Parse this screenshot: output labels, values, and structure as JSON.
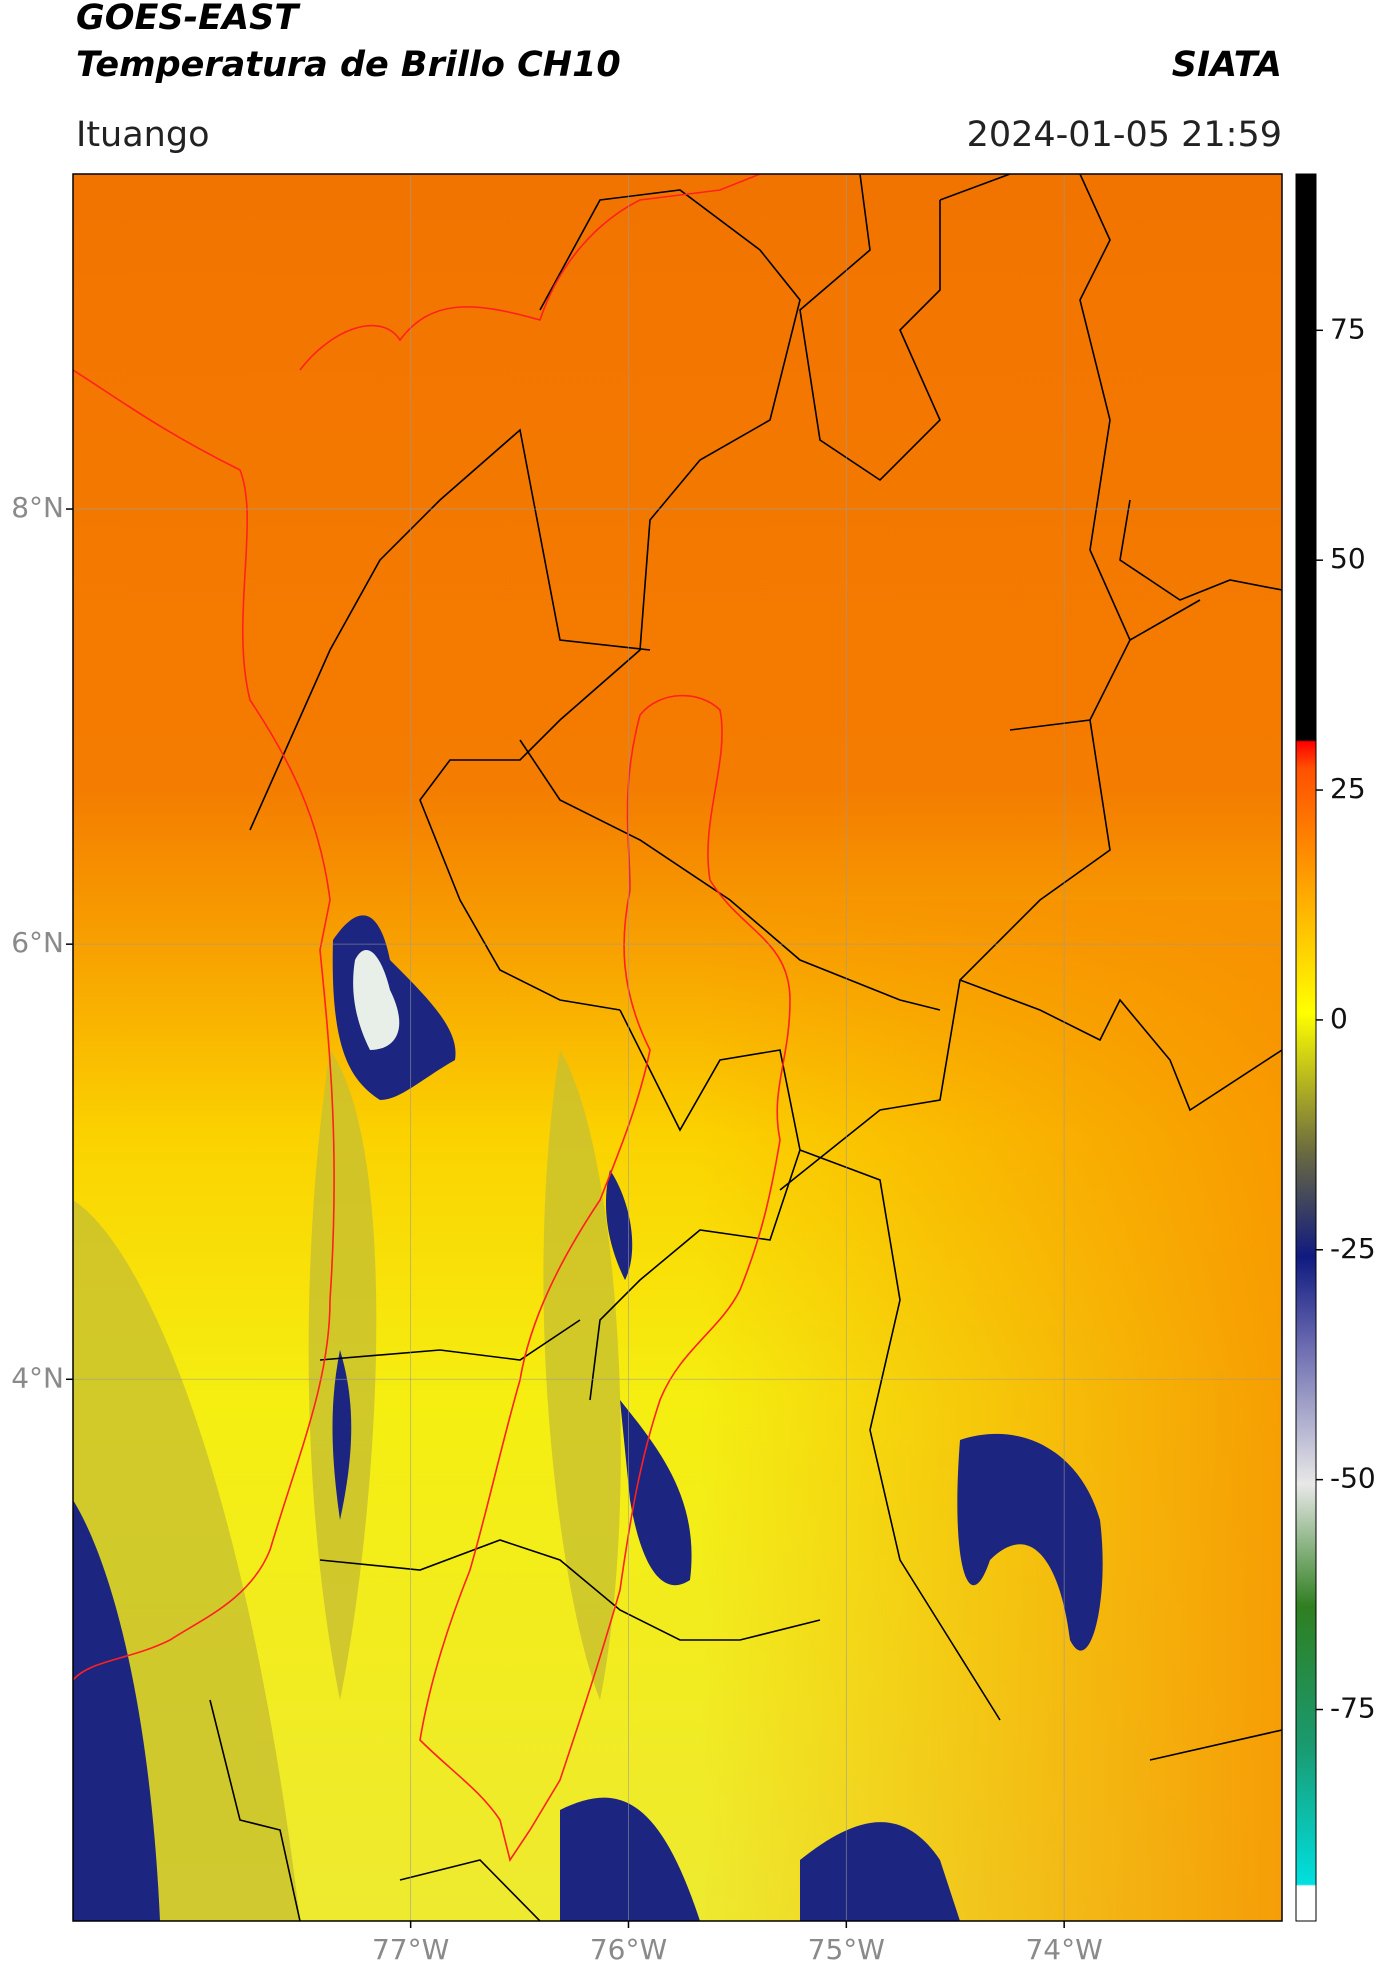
{
  "header": {
    "satellite": "GOES-EAST",
    "product": "Temperatura de Brillo CH10",
    "agency": "SIATA",
    "location": "Ituango",
    "datetime": "2024-01-05 21:59"
  },
  "map": {
    "lat_range": [
      1.51,
      9.54
    ],
    "lon_range": [
      -78.55,
      -73.0
    ],
    "lat_ticks": [
      {
        "value": 8,
        "label": "8°N"
      },
      {
        "value": 6,
        "label": "6°N"
      },
      {
        "value": 4,
        "label": "4°N"
      }
    ],
    "lon_ticks": [
      {
        "value": -77,
        "label": "77°W"
      },
      {
        "value": -76,
        "label": "76°W"
      },
      {
        "value": -75,
        "label": "75°W"
      },
      {
        "value": -74,
        "label": "74°W"
      }
    ]
  },
  "colorbar": {
    "range": [
      -98,
      92
    ],
    "ticks": [
      75,
      50,
      25,
      0,
      -25,
      -50,
      -75
    ]
  }
}
